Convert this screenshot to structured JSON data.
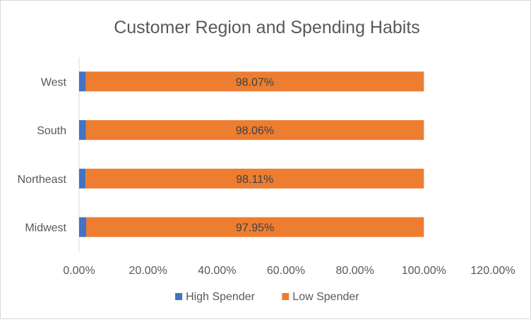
{
  "chart_data": {
    "type": "bar",
    "orientation": "horizontal",
    "stacked": true,
    "title": "Customer Region and Spending Habits",
    "categories": [
      "West",
      "South",
      "Northeast",
      "Midwest"
    ],
    "series": [
      {
        "name": "High Spender",
        "color": "#4472c4",
        "values": [
          1.93,
          1.94,
          1.89,
          2.05
        ]
      },
      {
        "name": "Low Spender",
        "color": "#ed7d31",
        "values": [
          98.07,
          98.06,
          98.11,
          97.95
        ],
        "labels": [
          "98.07%",
          "98.06%",
          "98.11%",
          "97.95%"
        ]
      }
    ],
    "xlim": [
      0,
      120
    ],
    "x_ticks": [
      "0.00%",
      "20.00%",
      "40.00%",
      "60.00%",
      "80.00%",
      "100.00%",
      "120.00%"
    ],
    "x_tick_values": [
      0,
      20,
      40,
      60,
      80,
      100,
      120
    ],
    "grid": false,
    "legend_position": "bottom"
  }
}
